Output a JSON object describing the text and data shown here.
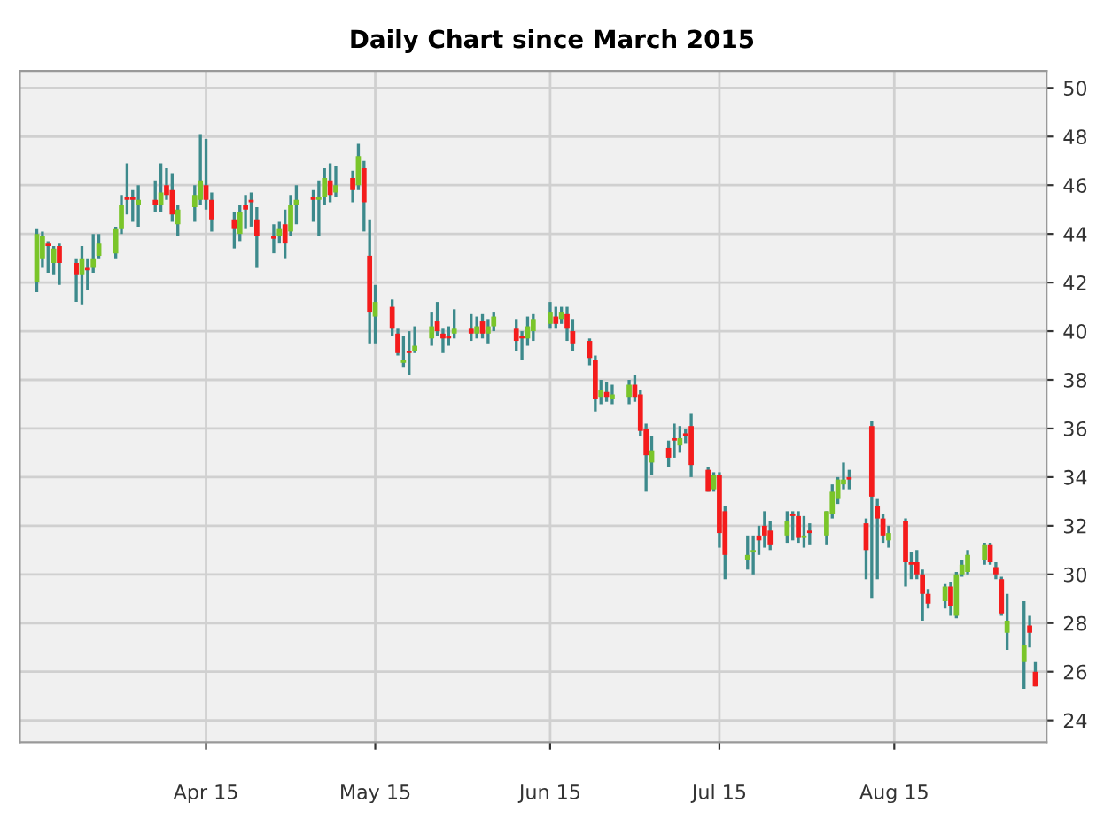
{
  "chart_data": {
    "type": "candlestick",
    "title": "Daily Chart since March 2015",
    "x": [
      "2015-03-02",
      "2015-03-03",
      "2015-03-04",
      "2015-03-05",
      "2015-03-06",
      "2015-03-09",
      "2015-03-10",
      "2015-03-11",
      "2015-03-12",
      "2015-03-13",
      "2015-03-16",
      "2015-03-17",
      "2015-03-18",
      "2015-03-19",
      "2015-03-20",
      "2015-03-23",
      "2015-03-24",
      "2015-03-25",
      "2015-03-26",
      "2015-03-27",
      "2015-03-30",
      "2015-03-31",
      "2015-04-01",
      "2015-04-02",
      "2015-04-06",
      "2015-04-07",
      "2015-04-08",
      "2015-04-09",
      "2015-04-10",
      "2015-04-13",
      "2015-04-14",
      "2015-04-15",
      "2015-04-16",
      "2015-04-17",
      "2015-04-20",
      "2015-04-21",
      "2015-04-22",
      "2015-04-23",
      "2015-04-24",
      "2015-04-27",
      "2015-04-28",
      "2015-04-29",
      "2015-04-30",
      "2015-05-01",
      "2015-05-04",
      "2015-05-05",
      "2015-05-06",
      "2015-05-07",
      "2015-05-08",
      "2015-05-11",
      "2015-05-12",
      "2015-05-13",
      "2015-05-14",
      "2015-05-15",
      "2015-05-18",
      "2015-05-19",
      "2015-05-20",
      "2015-05-21",
      "2015-05-22",
      "2015-05-26",
      "2015-05-27",
      "2015-05-28",
      "2015-05-29",
      "2015-06-01",
      "2015-06-02",
      "2015-06-03",
      "2015-06-04",
      "2015-06-05",
      "2015-06-08",
      "2015-06-09",
      "2015-06-10",
      "2015-06-11",
      "2015-06-12",
      "2015-06-15",
      "2015-06-16",
      "2015-06-17",
      "2015-06-18",
      "2015-06-19",
      "2015-06-22",
      "2015-06-23",
      "2015-06-24",
      "2015-06-25",
      "2015-06-26",
      "2015-06-29",
      "2015-06-30",
      "2015-07-01",
      "2015-07-02",
      "2015-07-06",
      "2015-07-07",
      "2015-07-08",
      "2015-07-09",
      "2015-07-10",
      "2015-07-13",
      "2015-07-14",
      "2015-07-15",
      "2015-07-16",
      "2015-07-17",
      "2015-07-20",
      "2015-07-21",
      "2015-07-22",
      "2015-07-23",
      "2015-07-24",
      "2015-07-27",
      "2015-07-28",
      "2015-07-29",
      "2015-07-30",
      "2015-07-31",
      "2015-08-03",
      "2015-08-04",
      "2015-08-05",
      "2015-08-06",
      "2015-08-07",
      "2015-08-10",
      "2015-08-11",
      "2015-08-12",
      "2015-08-13",
      "2015-08-14",
      "2015-08-17",
      "2015-08-18",
      "2015-08-19",
      "2015-08-20",
      "2015-08-21",
      "2015-08-24",
      "2015-08-25",
      "2015-08-26"
    ],
    "ohlc": [
      [
        42.0,
        44.2,
        41.6,
        44.0
      ],
      [
        43.0,
        44.1,
        42.6,
        43.9
      ],
      [
        43.6,
        43.7,
        42.4,
        43.5
      ],
      [
        42.8,
        43.5,
        42.3,
        43.4
      ],
      [
        43.5,
        43.6,
        41.9,
        42.8
      ],
      [
        42.8,
        43.0,
        41.2,
        42.3
      ],
      [
        42.3,
        43.5,
        41.1,
        43.0
      ],
      [
        42.6,
        43.0,
        41.7,
        42.5
      ],
      [
        42.6,
        44.0,
        42.4,
        43.0
      ],
      [
        43.1,
        44.0,
        43.0,
        43.6
      ],
      [
        43.2,
        44.3,
        43.0,
        44.2
      ],
      [
        44.2,
        45.6,
        44.0,
        45.2
      ],
      [
        45.5,
        46.9,
        44.8,
        45.4
      ],
      [
        45.5,
        45.8,
        44.5,
        45.4
      ],
      [
        45.2,
        46.0,
        44.3,
        45.4
      ],
      [
        45.4,
        46.2,
        44.9,
        45.2
      ],
      [
        45.2,
        46.9,
        44.9,
        45.7
      ],
      [
        46.0,
        46.7,
        45.4,
        45.6
      ],
      [
        45.8,
        46.5,
        44.5,
        44.8
      ],
      [
        44.4,
        45.2,
        43.9,
        45.0
      ],
      [
        45.1,
        46.0,
        44.5,
        45.6
      ],
      [
        45.4,
        48.1,
        45.2,
        46.2
      ],
      [
        46.0,
        47.9,
        45.0,
        45.4
      ],
      [
        45.4,
        45.7,
        44.1,
        44.6
      ],
      [
        44.6,
        44.9,
        43.4,
        44.2
      ],
      [
        44.0,
        45.2,
        43.7,
        44.9
      ],
      [
        45.2,
        45.6,
        44.2,
        45.0
      ],
      [
        45.4,
        45.7,
        44.3,
        45.3
      ],
      [
        44.6,
        45.1,
        42.6,
        43.9
      ],
      [
        43.9,
        44.4,
        43.2,
        43.8
      ],
      [
        43.9,
        44.5,
        43.6,
        44.2
      ],
      [
        44.4,
        45.0,
        43.0,
        43.6
      ],
      [
        44.1,
        45.6,
        43.9,
        45.2
      ],
      [
        45.2,
        46.0,
        44.4,
        45.4
      ],
      [
        45.5,
        45.8,
        44.5,
        45.4
      ],
      [
        45.4,
        46.2,
        43.9,
        45.5
      ],
      [
        45.5,
        46.7,
        45.2,
        46.3
      ],
      [
        46.2,
        46.9,
        45.3,
        45.6
      ],
      [
        45.7,
        46.8,
        45.5,
        46.0
      ],
      [
        46.3,
        46.6,
        45.3,
        45.8
      ],
      [
        46.0,
        47.7,
        45.8,
        47.2
      ],
      [
        46.7,
        47.0,
        44.1,
        45.3
      ],
      [
        43.1,
        44.6,
        39.5,
        40.8
      ],
      [
        40.6,
        41.9,
        39.5,
        41.2
      ],
      [
        41.0,
        41.3,
        39.8,
        40.1
      ],
      [
        39.9,
        40.1,
        39.0,
        39.1
      ],
      [
        38.7,
        39.8,
        38.5,
        38.8
      ],
      [
        39.2,
        40.0,
        38.2,
        39.1
      ],
      [
        39.2,
        40.2,
        39.1,
        39.4
      ],
      [
        39.7,
        40.8,
        39.4,
        40.2
      ],
      [
        40.4,
        41.2,
        39.8,
        40.0
      ],
      [
        39.9,
        40.1,
        39.1,
        39.7
      ],
      [
        39.8,
        40.2,
        39.4,
        39.7
      ],
      [
        39.9,
        40.9,
        39.7,
        40.1
      ],
      [
        40.1,
        40.7,
        39.6,
        39.9
      ],
      [
        39.9,
        40.6,
        39.7,
        40.2
      ],
      [
        40.4,
        40.7,
        39.7,
        39.9
      ],
      [
        39.9,
        40.5,
        39.5,
        40.2
      ],
      [
        40.2,
        40.8,
        40.0,
        40.6
      ],
      [
        40.1,
        40.5,
        39.2,
        39.6
      ],
      [
        39.8,
        40.0,
        38.8,
        39.7
      ],
      [
        39.7,
        40.6,
        39.4,
        40.2
      ],
      [
        40.0,
        40.7,
        39.6,
        40.5
      ],
      [
        40.3,
        41.2,
        40.1,
        40.8
      ],
      [
        40.6,
        41.0,
        40.1,
        40.3
      ],
      [
        40.5,
        41.0,
        40.3,
        40.8
      ],
      [
        40.7,
        41.0,
        39.6,
        40.1
      ],
      [
        40.0,
        40.5,
        39.2,
        39.5
      ],
      [
        39.6,
        39.7,
        38.6,
        38.9
      ],
      [
        38.8,
        39.0,
        36.7,
        37.2
      ],
      [
        37.3,
        38.0,
        37.0,
        37.6
      ],
      [
        37.5,
        37.9,
        37.1,
        37.3
      ],
      [
        37.2,
        37.8,
        37.0,
        37.4
      ],
      [
        37.3,
        38.0,
        37.0,
        37.8
      ],
      [
        37.8,
        38.2,
        37.1,
        37.3
      ],
      [
        37.4,
        37.6,
        35.7,
        35.9
      ],
      [
        36.0,
        36.2,
        33.4,
        34.9
      ],
      [
        34.6,
        35.7,
        34.1,
        35.1
      ],
      [
        35.2,
        35.5,
        34.4,
        34.8
      ],
      [
        35.6,
        36.2,
        34.8,
        35.5
      ],
      [
        35.3,
        36.1,
        35.0,
        35.6
      ],
      [
        35.8,
        36.0,
        35.4,
        35.7
      ],
      [
        36.1,
        36.6,
        34.0,
        34.5
      ],
      [
        34.3,
        34.4,
        33.4,
        33.4
      ],
      [
        33.5,
        34.2,
        33.4,
        34.1
      ],
      [
        34.1,
        34.2,
        31.1,
        31.7
      ],
      [
        32.6,
        32.8,
        29.8,
        30.8
      ],
      [
        30.6,
        31.6,
        30.2,
        30.8
      ],
      [
        30.9,
        31.6,
        30.0,
        31.0
      ],
      [
        31.6,
        32.0,
        30.8,
        31.4
      ],
      [
        32.0,
        32.6,
        31.1,
        31.6
      ],
      [
        31.8,
        32.2,
        31.0,
        31.2
      ],
      [
        31.6,
        32.6,
        31.3,
        32.2
      ],
      [
        32.5,
        32.6,
        31.4,
        32.4
      ],
      [
        32.4,
        32.6,
        31.3,
        31.5
      ],
      [
        31.5,
        32.4,
        31.1,
        31.6
      ],
      [
        31.8,
        32.1,
        31.2,
        31.7
      ],
      [
        31.6,
        32.6,
        31.2,
        32.6
      ],
      [
        32.5,
        33.7,
        32.3,
        33.4
      ],
      [
        33.1,
        34.0,
        32.9,
        33.9
      ],
      [
        33.7,
        34.6,
        33.5,
        33.9
      ],
      [
        34.0,
        34.3,
        33.5,
        33.9
      ],
      [
        32.1,
        32.3,
        29.8,
        31.0
      ],
      [
        36.1,
        36.3,
        29.0,
        33.2
      ],
      [
        32.8,
        33.1,
        29.8,
        32.3
      ],
      [
        32.3,
        32.5,
        31.3,
        31.6
      ],
      [
        31.4,
        32.0,
        31.1,
        31.7
      ],
      [
        32.2,
        32.3,
        29.5,
        30.5
      ],
      [
        30.5,
        30.9,
        29.8,
        30.4
      ],
      [
        30.5,
        31.0,
        29.8,
        30.0
      ],
      [
        30.0,
        30.2,
        28.1,
        29.2
      ],
      [
        29.2,
        29.4,
        28.6,
        28.8
      ],
      [
        28.9,
        29.6,
        28.6,
        29.5
      ],
      [
        29.5,
        29.7,
        28.3,
        28.7
      ],
      [
        28.3,
        30.1,
        28.2,
        30.0
      ],
      [
        30.0,
        30.6,
        29.9,
        30.4
      ],
      [
        30.1,
        31.0,
        30.0,
        30.8
      ],
      [
        30.6,
        31.3,
        30.4,
        31.2
      ],
      [
        31.2,
        31.3,
        30.4,
        30.5
      ],
      [
        30.3,
        30.5,
        29.8,
        30.0
      ],
      [
        29.8,
        29.9,
        28.3,
        28.4
      ],
      [
        27.6,
        29.2,
        26.9,
        28.1
      ],
      [
        26.4,
        28.9,
        25.3,
        27.1
      ],
      [
        27.9,
        28.3,
        27.0,
        27.6
      ],
      [
        26.0,
        26.4,
        25.4,
        25.4
      ]
    ],
    "xlim": [
      "2015-02-27",
      "2015-08-28"
    ],
    "xticks": [
      {
        "value": "2015-04-01",
        "label": "Apr 15"
      },
      {
        "value": "2015-05-01",
        "label": "May 15"
      },
      {
        "value": "2015-06-01",
        "label": "Jun 15"
      },
      {
        "value": "2015-07-01",
        "label": "Jul 15"
      },
      {
        "value": "2015-08-01",
        "label": "Aug 15"
      }
    ],
    "ylim": [
      23.1,
      50.7
    ],
    "yticks": [
      24,
      26,
      28,
      30,
      32,
      34,
      36,
      38,
      40,
      42,
      44,
      46,
      48,
      50
    ],
    "grid": true,
    "legend": false
  }
}
